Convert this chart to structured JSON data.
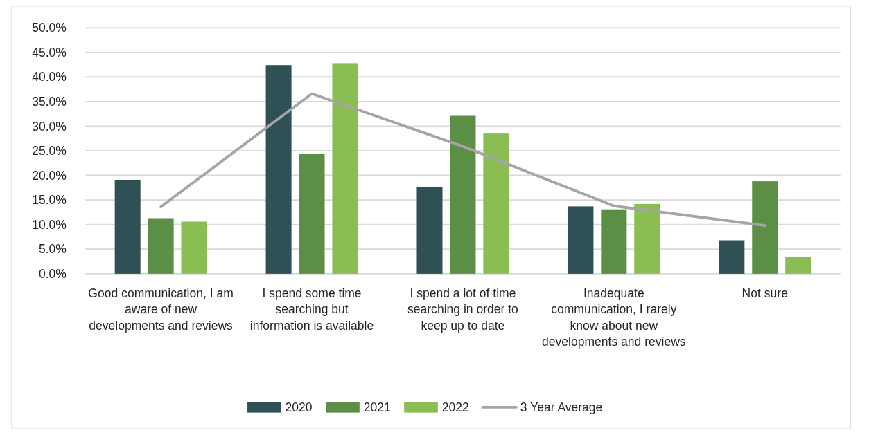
{
  "chart_data": {
    "type": "bar",
    "categories": [
      "Good communication, I am aware of new developments and reviews",
      "I spend some time searching but information is available",
      "I spend a lot of time searching in order to keep up to date",
      "Inadequate communication, I rarely know about new developments and reviews",
      "Not sure"
    ],
    "series": [
      {
        "name": "2020",
        "color": "#2f5055",
        "values": [
          19.1,
          42.4,
          17.7,
          13.7,
          6.8
        ]
      },
      {
        "name": "2021",
        "color": "#5b8f45",
        "values": [
          11.3,
          24.4,
          32.1,
          13.1,
          18.8
        ]
      },
      {
        "name": "2022",
        "color": "#8bbe52",
        "values": [
          10.6,
          42.8,
          28.5,
          14.2,
          3.5
        ]
      },
      {
        "name": "3 Year Average",
        "type": "line",
        "color": "#a5a5a5",
        "values": [
          13.6,
          36.6,
          25.9,
          13.8,
          9.8
        ]
      }
    ],
    "ylim": [
      0,
      50
    ],
    "yticks": [
      {
        "value": 0,
        "label": "0.0%"
      },
      {
        "value": 5,
        "label": "5.0%"
      },
      {
        "value": 10,
        "label": "10.0%"
      },
      {
        "value": 15,
        "label": "15.0%"
      },
      {
        "value": 20,
        "label": "20.0%"
      },
      {
        "value": 25,
        "label": "25.0%"
      },
      {
        "value": 30,
        "label": "30.0%"
      },
      {
        "value": 35,
        "label": "35.0%"
      },
      {
        "value": 40,
        "label": "40.0%"
      },
      {
        "value": 45,
        "label": "45.0%"
      },
      {
        "value": 50,
        "label": "50.0%"
      }
    ],
    "grid": "y",
    "legend": "bottom",
    "marker": "none"
  }
}
